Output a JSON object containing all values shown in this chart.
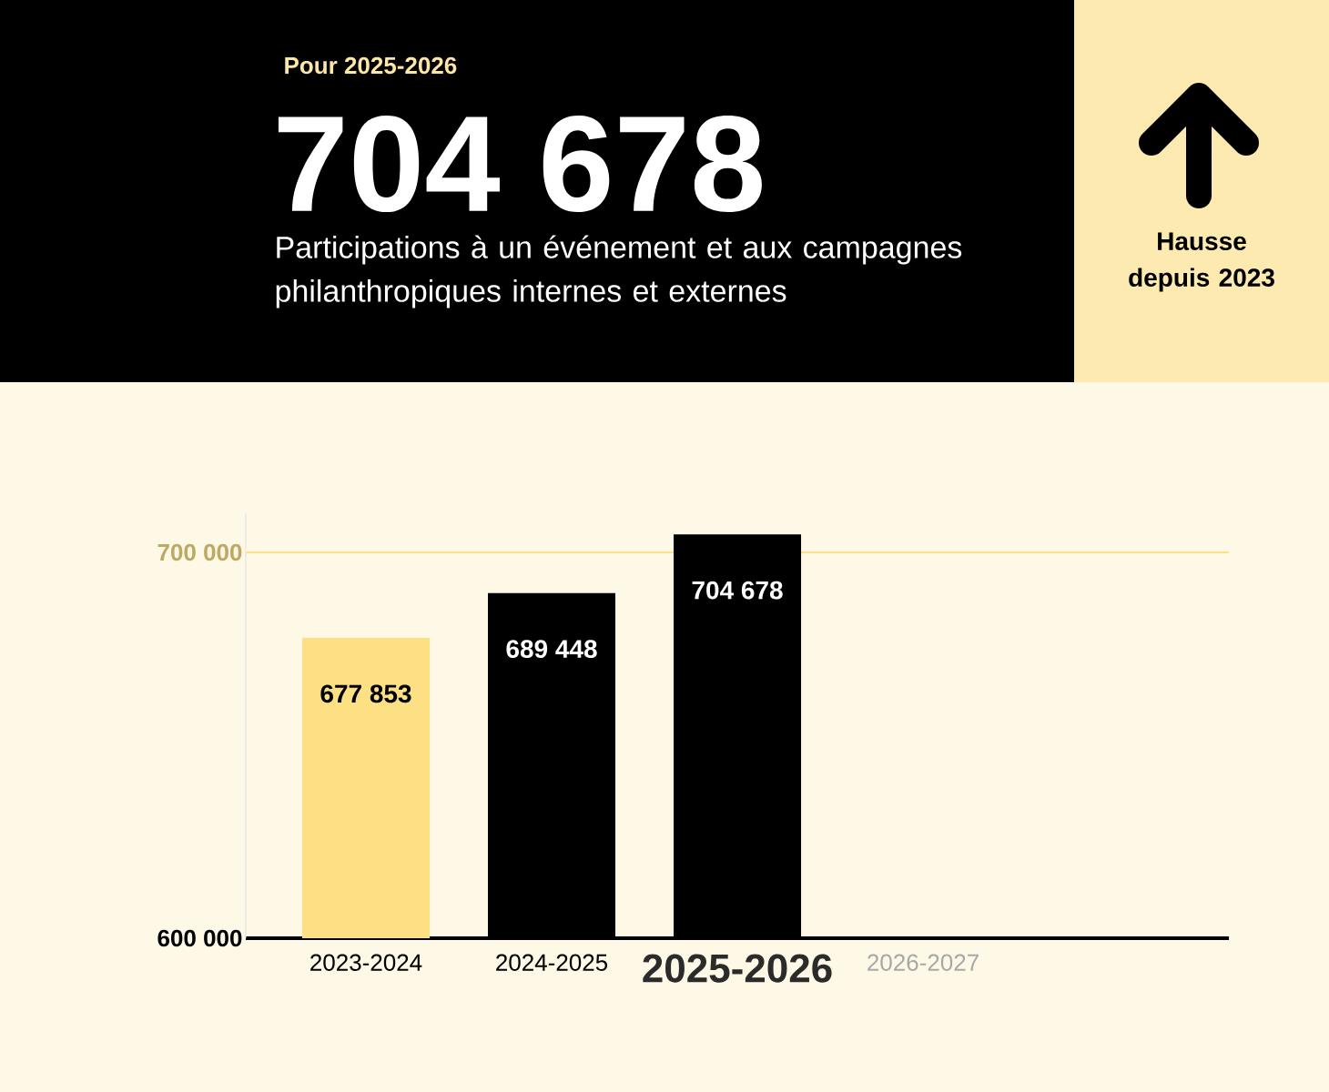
{
  "chart_data": {
    "type": "bar",
    "title": "704 678",
    "subtitle": "Participations à un événement et aux campagnes philanthropiques internes et externes",
    "annotations": [
      "Pour 2025-2026",
      "Hausse depuis 2023"
    ],
    "categories": [
      "2023-2024",
      "2024-2025",
      "2025-2026",
      "2026-2027"
    ],
    "values": [
      677853,
      689448,
      704678,
      null
    ],
    "colors": [
      "#fde084",
      "#000000",
      "#000000",
      null
    ],
    "value_labels": [
      "677 853",
      "689 448",
      "704 678",
      null
    ],
    "ylim": [
      600000,
      710000
    ],
    "yticks": [
      {
        "value": 600000,
        "label": "600 000"
      },
      {
        "value": 700000,
        "label": "700 000"
      }
    ],
    "ref_lines": [
      {
        "axis": "y",
        "value": 700000,
        "color": "#fde084"
      }
    ]
  }
}
